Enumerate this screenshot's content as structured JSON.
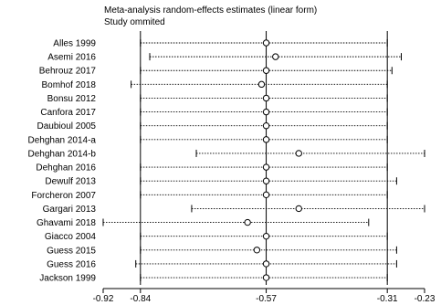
{
  "chart_data": {
    "type": "forest",
    "title": "Meta-analysis random-effects estimates (linear form)",
    "subtitle": "Study ommited",
    "xlim": [
      -0.92,
      -0.23
    ],
    "ticks": [
      -0.92,
      -0.84,
      -0.57,
      -0.31,
      -0.23
    ],
    "tick_labels": [
      "-0.92",
      "-0.84",
      "-0.57",
      "-0.31",
      "-0.23"
    ],
    "reference_lines": [
      -0.84,
      -0.57,
      -0.31
    ],
    "studies": [
      {
        "label": "Alles 1999",
        "estimate": -0.57,
        "lower": -0.84,
        "upper": -0.31
      },
      {
        "label": "Asemi 2016",
        "estimate": -0.55,
        "lower": -0.82,
        "upper": -0.28
      },
      {
        "label": "Behrouz 2017",
        "estimate": -0.57,
        "lower": -0.84,
        "upper": -0.3
      },
      {
        "label": "Bomhof 2018",
        "estimate": -0.58,
        "lower": -0.86,
        "upper": -0.31
      },
      {
        "label": "Bonsu 2012",
        "estimate": -0.57,
        "lower": -0.84,
        "upper": -0.31
      },
      {
        "label": "Canfora 2017",
        "estimate": -0.57,
        "lower": -0.84,
        "upper": -0.31
      },
      {
        "label": "Daubioul 2005",
        "estimate": -0.57,
        "lower": -0.84,
        "upper": -0.31
      },
      {
        "label": "Dehghan 2014-a",
        "estimate": -0.57,
        "lower": -0.84,
        "upper": -0.31
      },
      {
        "label": "Dehghan 2014-b",
        "estimate": -0.5,
        "lower": -0.72,
        "upper": -0.23
      },
      {
        "label": "Dehghan 2016",
        "estimate": -0.57,
        "lower": -0.84,
        "upper": -0.31
      },
      {
        "label": "Dewulf 2013",
        "estimate": -0.57,
        "lower": -0.84,
        "upper": -0.29
      },
      {
        "label": "Forcheron 2007",
        "estimate": -0.57,
        "lower": -0.84,
        "upper": -0.31
      },
      {
        "label": "Gargari 2013",
        "estimate": -0.5,
        "lower": -0.73,
        "upper": -0.23
      },
      {
        "label": "Ghavami 2018",
        "estimate": -0.61,
        "lower": -0.92,
        "upper": -0.35
      },
      {
        "label": "Giacco 2004",
        "estimate": -0.57,
        "lower": -0.84,
        "upper": -0.31
      },
      {
        "label": "Guess 2015",
        "estimate": -0.59,
        "lower": -0.84,
        "upper": -0.29
      },
      {
        "label": "Guess 2016",
        "estimate": -0.57,
        "lower": -0.85,
        "upper": -0.29
      },
      {
        "label": "Jackson 1999",
        "estimate": -0.57,
        "lower": -0.84,
        "upper": -0.31
      }
    ]
  }
}
